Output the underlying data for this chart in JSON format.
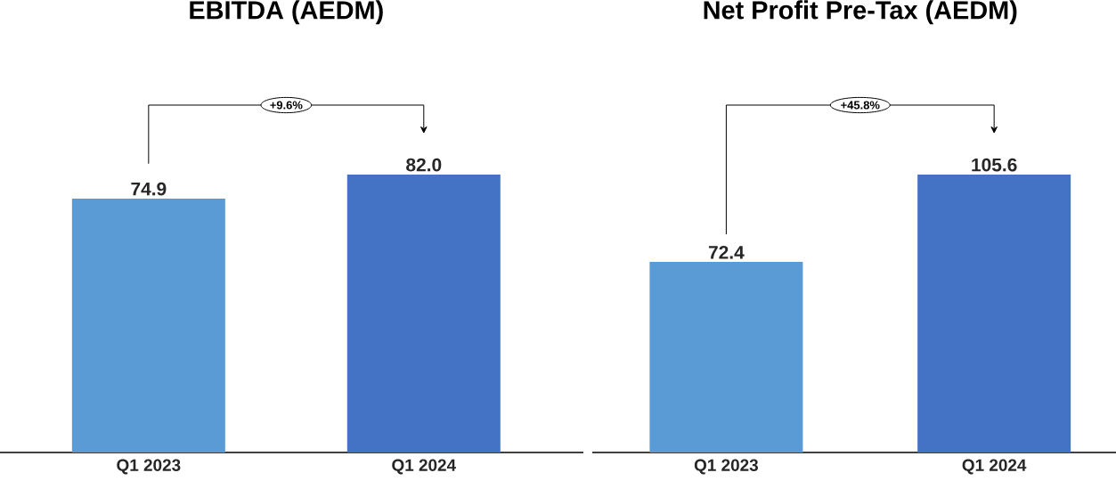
{
  "chart_data": [
    {
      "type": "bar",
      "title": "EBITDA (AEDM)",
      "categories": [
        "Q1 2023",
        "Q1 2024"
      ],
      "values": [
        74.9,
        82.0
      ],
      "colors": [
        "#5b9bd5",
        "#4472c4"
      ],
      "value_labels": [
        "74.9",
        "82.0"
      ],
      "annotations": [
        "+9.6%"
      ],
      "tick_labels": "x"
    },
    {
      "type": "bar",
      "title": "Net Profit Pre-Tax (AEDM)",
      "categories": [
        "Q1 2023",
        "Q1 2024"
      ],
      "values": [
        72.4,
        105.6
      ],
      "colors": [
        "#5b9bd5",
        "#4472c4"
      ],
      "value_labels": [
        "72.4",
        "105.6"
      ],
      "annotations": [
        "+45.8%"
      ],
      "tick_labels": "x"
    }
  ]
}
